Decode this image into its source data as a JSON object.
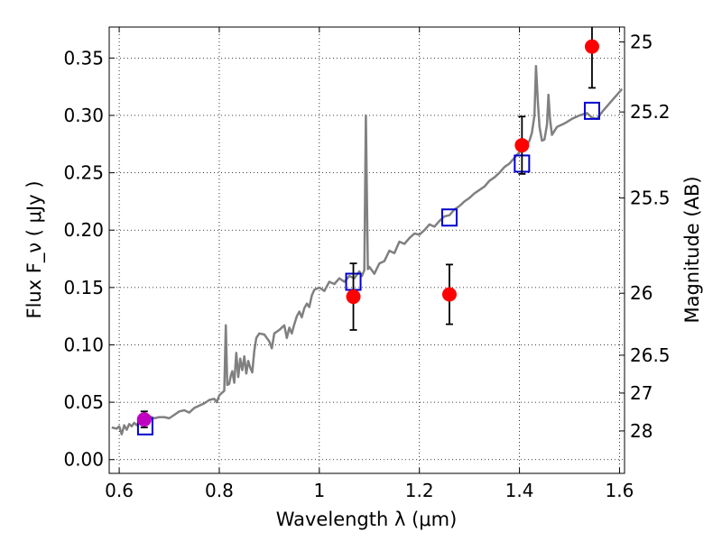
{
  "chart_data": {
    "type": "line",
    "xlabel": "Wavelength  λ (μm)",
    "ylabel": "Flux  F_ν  ( μJy )",
    "y2label": "Magnitude (AB)",
    "xlim": [
      0.58,
      1.61
    ],
    "ylim": [
      -0.012,
      0.377
    ],
    "grid": true,
    "x_ticks": [
      {
        "value": 0.6,
        "label": "0.6"
      },
      {
        "value": 0.8,
        "label": "0.8"
      },
      {
        "value": 1.0,
        "label": "1"
      },
      {
        "value": 1.2,
        "label": "1.2"
      },
      {
        "value": 1.4,
        "label": "1.4"
      },
      {
        "value": 1.6,
        "label": "1.6"
      }
    ],
    "y_ticks": [
      {
        "value": 0.0,
        "label": "0.00"
      },
      {
        "value": 0.05,
        "label": "0.05"
      },
      {
        "value": 0.1,
        "label": "0.10"
      },
      {
        "value": 0.15,
        "label": "0.15"
      },
      {
        "value": 0.2,
        "label": "0.20"
      },
      {
        "value": 0.25,
        "label": "0.25"
      },
      {
        "value": 0.3,
        "label": "0.30"
      },
      {
        "value": 0.35,
        "label": "0.35"
      }
    ],
    "y2_ticks": [
      {
        "flux": 0.364,
        "label": "25"
      },
      {
        "flux": 0.303,
        "label": "25.2"
      },
      {
        "flux": 0.228,
        "label": "25.5"
      },
      {
        "flux": 0.145,
        "label": "26"
      },
      {
        "flux": 0.091,
        "label": "26.5"
      },
      {
        "flux": 0.058,
        "label": "27"
      },
      {
        "flux": 0.025,
        "label": "28"
      }
    ],
    "colors": {
      "spectrum": "#808080",
      "observed": "#ff0000",
      "observed_optical": "#c000c0",
      "model": "#0000cc",
      "errorbar": "#000000"
    },
    "spectrum": [
      [
        0.585,
        0.028
      ],
      [
        0.595,
        0.027
      ],
      [
        0.6,
        0.029
      ],
      [
        0.605,
        0.022
      ],
      [
        0.61,
        0.03
      ],
      [
        0.615,
        0.026
      ],
      [
        0.62,
        0.031
      ],
      [
        0.625,
        0.029
      ],
      [
        0.63,
        0.032
      ],
      [
        0.635,
        0.03
      ],
      [
        0.64,
        0.033
      ],
      [
        0.65,
        0.036
      ],
      [
        0.66,
        0.038
      ],
      [
        0.67,
        0.036
      ],
      [
        0.68,
        0.037
      ],
      [
        0.69,
        0.037
      ],
      [
        0.7,
        0.036
      ],
      [
        0.71,
        0.039
      ],
      [
        0.72,
        0.042
      ],
      [
        0.73,
        0.043
      ],
      [
        0.74,
        0.041
      ],
      [
        0.75,
        0.045
      ],
      [
        0.76,
        0.047
      ],
      [
        0.77,
        0.049
      ],
      [
        0.78,
        0.052
      ],
      [
        0.79,
        0.053
      ],
      [
        0.795,
        0.05
      ],
      [
        0.8,
        0.056
      ],
      [
        0.805,
        0.058
      ],
      [
        0.81,
        0.06
      ],
      [
        0.813,
        0.117
      ],
      [
        0.816,
        0.065
      ],
      [
        0.82,
        0.066
      ],
      [
        0.823,
        0.073
      ],
      [
        0.826,
        0.077
      ],
      [
        0.83,
        0.067
      ],
      [
        0.834,
        0.093
      ],
      [
        0.838,
        0.072
      ],
      [
        0.842,
        0.088
      ],
      [
        0.846,
        0.078
      ],
      [
        0.85,
        0.09
      ],
      [
        0.854,
        0.075
      ],
      [
        0.858,
        0.086
      ],
      [
        0.862,
        0.08
      ],
      [
        0.866,
        0.076
      ],
      [
        0.87,
        0.095
      ],
      [
        0.874,
        0.106
      ],
      [
        0.88,
        0.11
      ],
      [
        0.89,
        0.109
      ],
      [
        0.9,
        0.103
      ],
      [
        0.905,
        0.097
      ],
      [
        0.91,
        0.11
      ],
      [
        0.92,
        0.113
      ],
      [
        0.93,
        0.117
      ],
      [
        0.935,
        0.106
      ],
      [
        0.94,
        0.115
      ],
      [
        0.945,
        0.11
      ],
      [
        0.95,
        0.118
      ],
      [
        0.955,
        0.125
      ],
      [
        0.96,
        0.129
      ],
      [
        0.965,
        0.124
      ],
      [
        0.97,
        0.132
      ],
      [
        0.975,
        0.136
      ],
      [
        0.98,
        0.133
      ],
      [
        0.985,
        0.143
      ],
      [
        0.99,
        0.148
      ],
      [
        1.0,
        0.15
      ],
      [
        1.01,
        0.147
      ],
      [
        1.02,
        0.155
      ],
      [
        1.03,
        0.153
      ],
      [
        1.04,
        0.158
      ],
      [
        1.05,
        0.155
      ],
      [
        1.06,
        0.16
      ],
      [
        1.07,
        0.158
      ],
      [
        1.08,
        0.164
      ],
      [
        1.085,
        0.16
      ],
      [
        1.09,
        0.165
      ],
      [
        1.093,
        0.3
      ],
      [
        1.097,
        0.166
      ],
      [
        1.1,
        0.168
      ],
      [
        1.11,
        0.162
      ],
      [
        1.12,
        0.171
      ],
      [
        1.13,
        0.173
      ],
      [
        1.14,
        0.182
      ],
      [
        1.15,
        0.18
      ],
      [
        1.16,
        0.19
      ],
      [
        1.17,
        0.188
      ],
      [
        1.18,
        0.193
      ],
      [
        1.19,
        0.197
      ],
      [
        1.2,
        0.196
      ],
      [
        1.21,
        0.2
      ],
      [
        1.22,
        0.205
      ],
      [
        1.23,
        0.203
      ],
      [
        1.24,
        0.208
      ],
      [
        1.25,
        0.212
      ],
      [
        1.26,
        0.213
      ],
      [
        1.27,
        0.218
      ],
      [
        1.28,
        0.221
      ],
      [
        1.29,
        0.225
      ],
      [
        1.3,
        0.228
      ],
      [
        1.31,
        0.232
      ],
      [
        1.32,
        0.235
      ],
      [
        1.33,
        0.238
      ],
      [
        1.34,
        0.243
      ],
      [
        1.35,
        0.246
      ],
      [
        1.36,
        0.25
      ],
      [
        1.37,
        0.255
      ],
      [
        1.38,
        0.258
      ],
      [
        1.39,
        0.263
      ],
      [
        1.4,
        0.268
      ],
      [
        1.41,
        0.272
      ],
      [
        1.42,
        0.278
      ],
      [
        1.425,
        0.285
      ],
      [
        1.43,
        0.3
      ],
      [
        1.433,
        0.343
      ],
      [
        1.437,
        0.31
      ],
      [
        1.44,
        0.29
      ],
      [
        1.445,
        0.278
      ],
      [
        1.45,
        0.279
      ],
      [
        1.455,
        0.292
      ],
      [
        1.458,
        0.318
      ],
      [
        1.461,
        0.297
      ],
      [
        1.465,
        0.283
      ],
      [
        1.475,
        0.29
      ],
      [
        1.49,
        0.293
      ],
      [
        1.505,
        0.297
      ],
      [
        1.52,
        0.3
      ],
      [
        1.535,
        0.302
      ],
      [
        1.545,
        0.298
      ],
      [
        1.555,
        0.297
      ],
      [
        1.565,
        0.303
      ],
      [
        1.575,
        0.308
      ],
      [
        1.585,
        0.313
      ],
      [
        1.595,
        0.318
      ],
      [
        1.605,
        0.323
      ]
    ],
    "observed": [
      {
        "x": 0.65,
        "y": 0.035,
        "err": 0.007,
        "color": "#c000c0"
      },
      {
        "x": 1.068,
        "y": 0.142,
        "err": 0.029,
        "color": "#ff0000"
      },
      {
        "x": 1.26,
        "y": 0.144,
        "err": 0.026,
        "color": "#ff0000"
      },
      {
        "x": 1.405,
        "y": 0.274,
        "err": 0.025,
        "color": "#ff0000"
      },
      {
        "x": 1.545,
        "y": 0.36,
        "err": 0.036,
        "color": "#ff0000"
      }
    ],
    "model": [
      {
        "x": 0.652,
        "y": 0.029
      },
      {
        "x": 1.068,
        "y": 0.155
      },
      {
        "x": 1.26,
        "y": 0.211
      },
      {
        "x": 1.405,
        "y": 0.258
      },
      {
        "x": 1.545,
        "y": 0.304
      }
    ]
  }
}
